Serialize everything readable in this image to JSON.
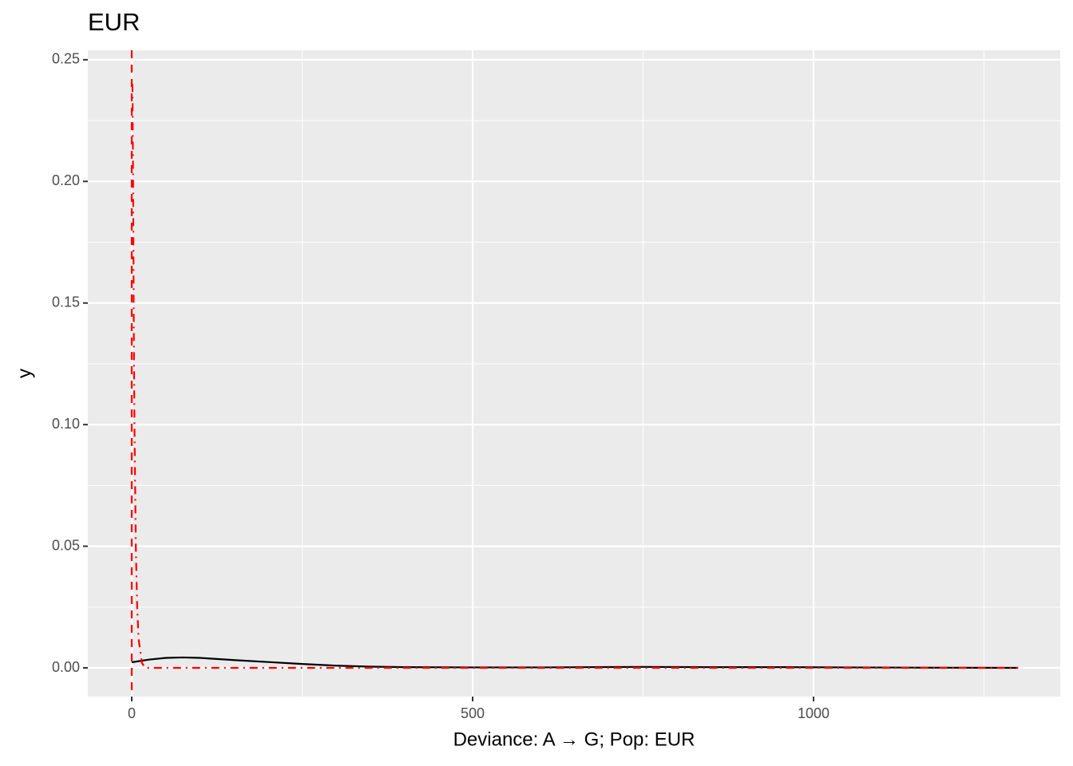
{
  "chart_data": {
    "type": "line",
    "title": "EUR",
    "x_label": "Deviance: A → G; Pop: EUR",
    "y_label": "y",
    "xlim": [
      -64.4,
      1361.8
    ],
    "ylim": [
      -0.0118,
      0.2539
    ],
    "xticks": [
      0,
      500,
      1000
    ],
    "yticks": [
      {
        "value": 0,
        "label": "0.00"
      },
      0.05,
      {
        "value": 0.1,
        "label": "0.10"
      },
      0.15,
      {
        "value": 0.2,
        "label": "0.20"
      },
      0.25
    ],
    "x_minor_grid": [
      250,
      750,
      1250
    ],
    "y_minor_grid": [
      0.025,
      0.075,
      0.125,
      0.175,
      0.225
    ],
    "grid": true,
    "vlines": [
      {
        "x": 0,
        "color": "#ff0000",
        "linetype": "dashed"
      }
    ],
    "series": [
      {
        "color": "#000000",
        "linetype": "solid",
        "x": [
          0,
          25,
          50,
          75,
          100,
          150,
          200,
          250,
          300,
          350,
          400,
          500,
          600,
          750,
          850,
          950,
          1050,
          1150,
          1300
        ],
        "values": [
          0.0023,
          0.0034,
          0.0041,
          0.0043,
          0.0041,
          0.0032,
          0.0024,
          0.0016,
          0.0009,
          0.0005,
          0.0003,
          0.0002,
          0.0002,
          0.0004,
          0.0003,
          0.0003,
          0.0002,
          0.0001,
          0.0
        ]
      },
      {
        "color": "#ff0000",
        "linetype": "dashdot",
        "x": [
          1,
          2,
          3,
          4,
          6,
          8,
          10,
          15,
          20,
          100,
          500,
          1000,
          1300
        ],
        "values": [
          0.24,
          0.2,
          0.14,
          0.1,
          0.05,
          0.025,
          0.012,
          0.002,
          0.0,
          0.0,
          0.0,
          0.0,
          0.0
        ]
      }
    ]
  }
}
